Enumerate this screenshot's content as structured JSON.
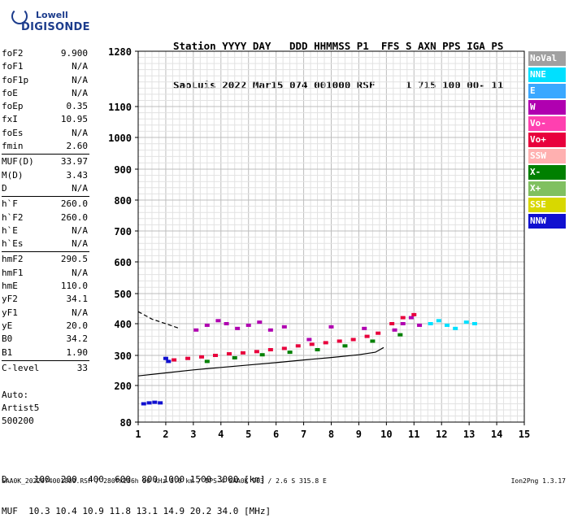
{
  "logo": {
    "line1": "Lowell",
    "line2": "DIGISONDE"
  },
  "header": {
    "row1": "Station YYYY DAY   DDD HHMMSS P1  FFS S AXN PPS IGA PS",
    "row2": "SaoLuis 2022 Mar15 074 001000 RSF     1 715 100 00- 11"
  },
  "params": [
    [
      {
        "k": "foF2",
        "v": "9.900"
      },
      {
        "k": "foF1",
        "v": "N/A"
      },
      {
        "k": "foF1p",
        "v": "N/A"
      },
      {
        "k": "foE",
        "v": "N/A"
      },
      {
        "k": "foEp",
        "v": "0.35"
      },
      {
        "k": "fxI",
        "v": "10.95"
      },
      {
        "k": "foEs",
        "v": "N/A"
      },
      {
        "k": "fmin",
        "v": "2.60"
      }
    ],
    [
      {
        "k": "MUF(D)",
        "v": "33.97"
      },
      {
        "k": "M(D)",
        "v": "3.43"
      },
      {
        "k": "D",
        "v": "N/A"
      }
    ],
    [
      {
        "k": "h`F",
        "v": "260.0"
      },
      {
        "k": "h`F2",
        "v": "260.0"
      },
      {
        "k": "h`E",
        "v": "N/A"
      },
      {
        "k": "h`Es",
        "v": "N/A"
      }
    ],
    [
      {
        "k": "hmF2",
        "v": "290.5"
      },
      {
        "k": "hmF1",
        "v": "N/A"
      },
      {
        "k": "hmE",
        "v": "110.0"
      },
      {
        "k": "yF2",
        "v": "34.1"
      },
      {
        "k": "yF1",
        "v": "N/A"
      },
      {
        "k": "yE",
        "v": "20.0"
      },
      {
        "k": "B0",
        "v": "34.2"
      },
      {
        "k": "B1",
        "v": "1.90"
      }
    ],
    [
      {
        "k": "C-level",
        "v": "33"
      }
    ]
  ],
  "auto": {
    "l1": "Auto:",
    "l2": "Artist5",
    "l3": "500200"
  },
  "legend": [
    {
      "name": "NoVal",
      "color": "#a0a0a0"
    },
    {
      "name": "NNE",
      "color": "#00e0ff"
    },
    {
      "name": "E",
      "color": "#3aa8ff"
    },
    {
      "name": "W",
      "color": "#b000b0"
    },
    {
      "name": "Vo-",
      "color": "#ff40b0"
    },
    {
      "name": "Vo+",
      "color": "#e8003c"
    },
    {
      "name": "SSW",
      "color": "#ffb0b0"
    },
    {
      "name": "X-",
      "color": "#008000"
    },
    {
      "name": "X+",
      "color": "#80c060"
    },
    {
      "name": "SSE",
      "color": "#d8d800"
    },
    {
      "name": "NNW",
      "color": "#1010d0"
    }
  ],
  "footer": {
    "d_row": "D     100  200  400  600  800 1000 1500 3000 [km]",
    "muf_row": "MUF  10.3 10.4 10.9 11.8 13.1 14.9 20.2 34.0 [MHz]"
  },
  "bottom": {
    "info": "SAA0K_2022074001000.RSF / 280fx256h 50 kHz 5.0 km / DPS-4 SAA0K 903 / 2.6 S 315.8 E",
    "version": "Ion2Png 1.3.17"
  },
  "chart_data": {
    "type": "scatter",
    "title": "",
    "xlabel": "",
    "ylabel": "",
    "xlim": [
      1,
      15
    ],
    "ylim": [
      80,
      1280
    ],
    "x_ticks": [
      1,
      2,
      3,
      4,
      5,
      6,
      7,
      8,
      9,
      10,
      11,
      12,
      13,
      14,
      15
    ],
    "y_ticks": [
      80,
      200,
      300,
      400,
      500,
      600,
      700,
      800,
      900,
      1000,
      1100,
      1280
    ],
    "grid": true,
    "y_scale": "non-linear",
    "series": [
      {
        "name": "W",
        "color": "#b000b0",
        "points": [
          [
            3.1,
            380
          ],
          [
            3.5,
            395
          ],
          [
            3.9,
            410
          ],
          [
            4.2,
            400
          ],
          [
            4.6,
            385
          ],
          [
            5.0,
            395
          ],
          [
            5.4,
            405
          ],
          [
            5.8,
            380
          ],
          [
            6.3,
            390
          ],
          [
            7.2,
            350
          ],
          [
            8.0,
            390
          ],
          [
            9.2,
            385
          ],
          [
            10.3,
            380
          ],
          [
            10.6,
            400
          ],
          [
            10.9,
            420
          ],
          [
            11.2,
            395
          ]
        ]
      },
      {
        "name": "Vo+",
        "color": "#e8003c",
        "points": [
          [
            2.3,
            285
          ],
          [
            2.8,
            290
          ],
          [
            3.3,
            295
          ],
          [
            3.8,
            300
          ],
          [
            4.3,
            305
          ],
          [
            4.8,
            308
          ],
          [
            5.3,
            312
          ],
          [
            5.8,
            318
          ],
          [
            6.3,
            322
          ],
          [
            6.8,
            330
          ],
          [
            7.3,
            335
          ],
          [
            7.8,
            340
          ],
          [
            8.3,
            345
          ],
          [
            8.8,
            350
          ],
          [
            9.3,
            360
          ],
          [
            9.7,
            370
          ],
          [
            10.2,
            400
          ],
          [
            10.6,
            420
          ],
          [
            11.0,
            430
          ]
        ]
      },
      {
        "name": "NNE",
        "color": "#00e0ff",
        "points": [
          [
            11.6,
            400
          ],
          [
            11.9,
            410
          ],
          [
            12.2,
            395
          ],
          [
            12.5,
            385
          ],
          [
            12.9,
            405
          ],
          [
            13.2,
            400
          ]
        ]
      },
      {
        "name": "NNW",
        "color": "#1010d0",
        "points": [
          [
            1.2,
            140
          ],
          [
            1.4,
            143
          ],
          [
            1.6,
            145
          ],
          [
            1.8,
            143
          ],
          [
            2.0,
            290
          ],
          [
            2.1,
            280
          ]
        ]
      },
      {
        "name": "X-",
        "color": "#008000",
        "points": [
          [
            3.5,
            280
          ],
          [
            4.5,
            292
          ],
          [
            5.5,
            302
          ],
          [
            6.5,
            310
          ],
          [
            7.5,
            318
          ],
          [
            8.5,
            330
          ],
          [
            9.5,
            345
          ],
          [
            10.5,
            365
          ]
        ]
      }
    ]
  }
}
